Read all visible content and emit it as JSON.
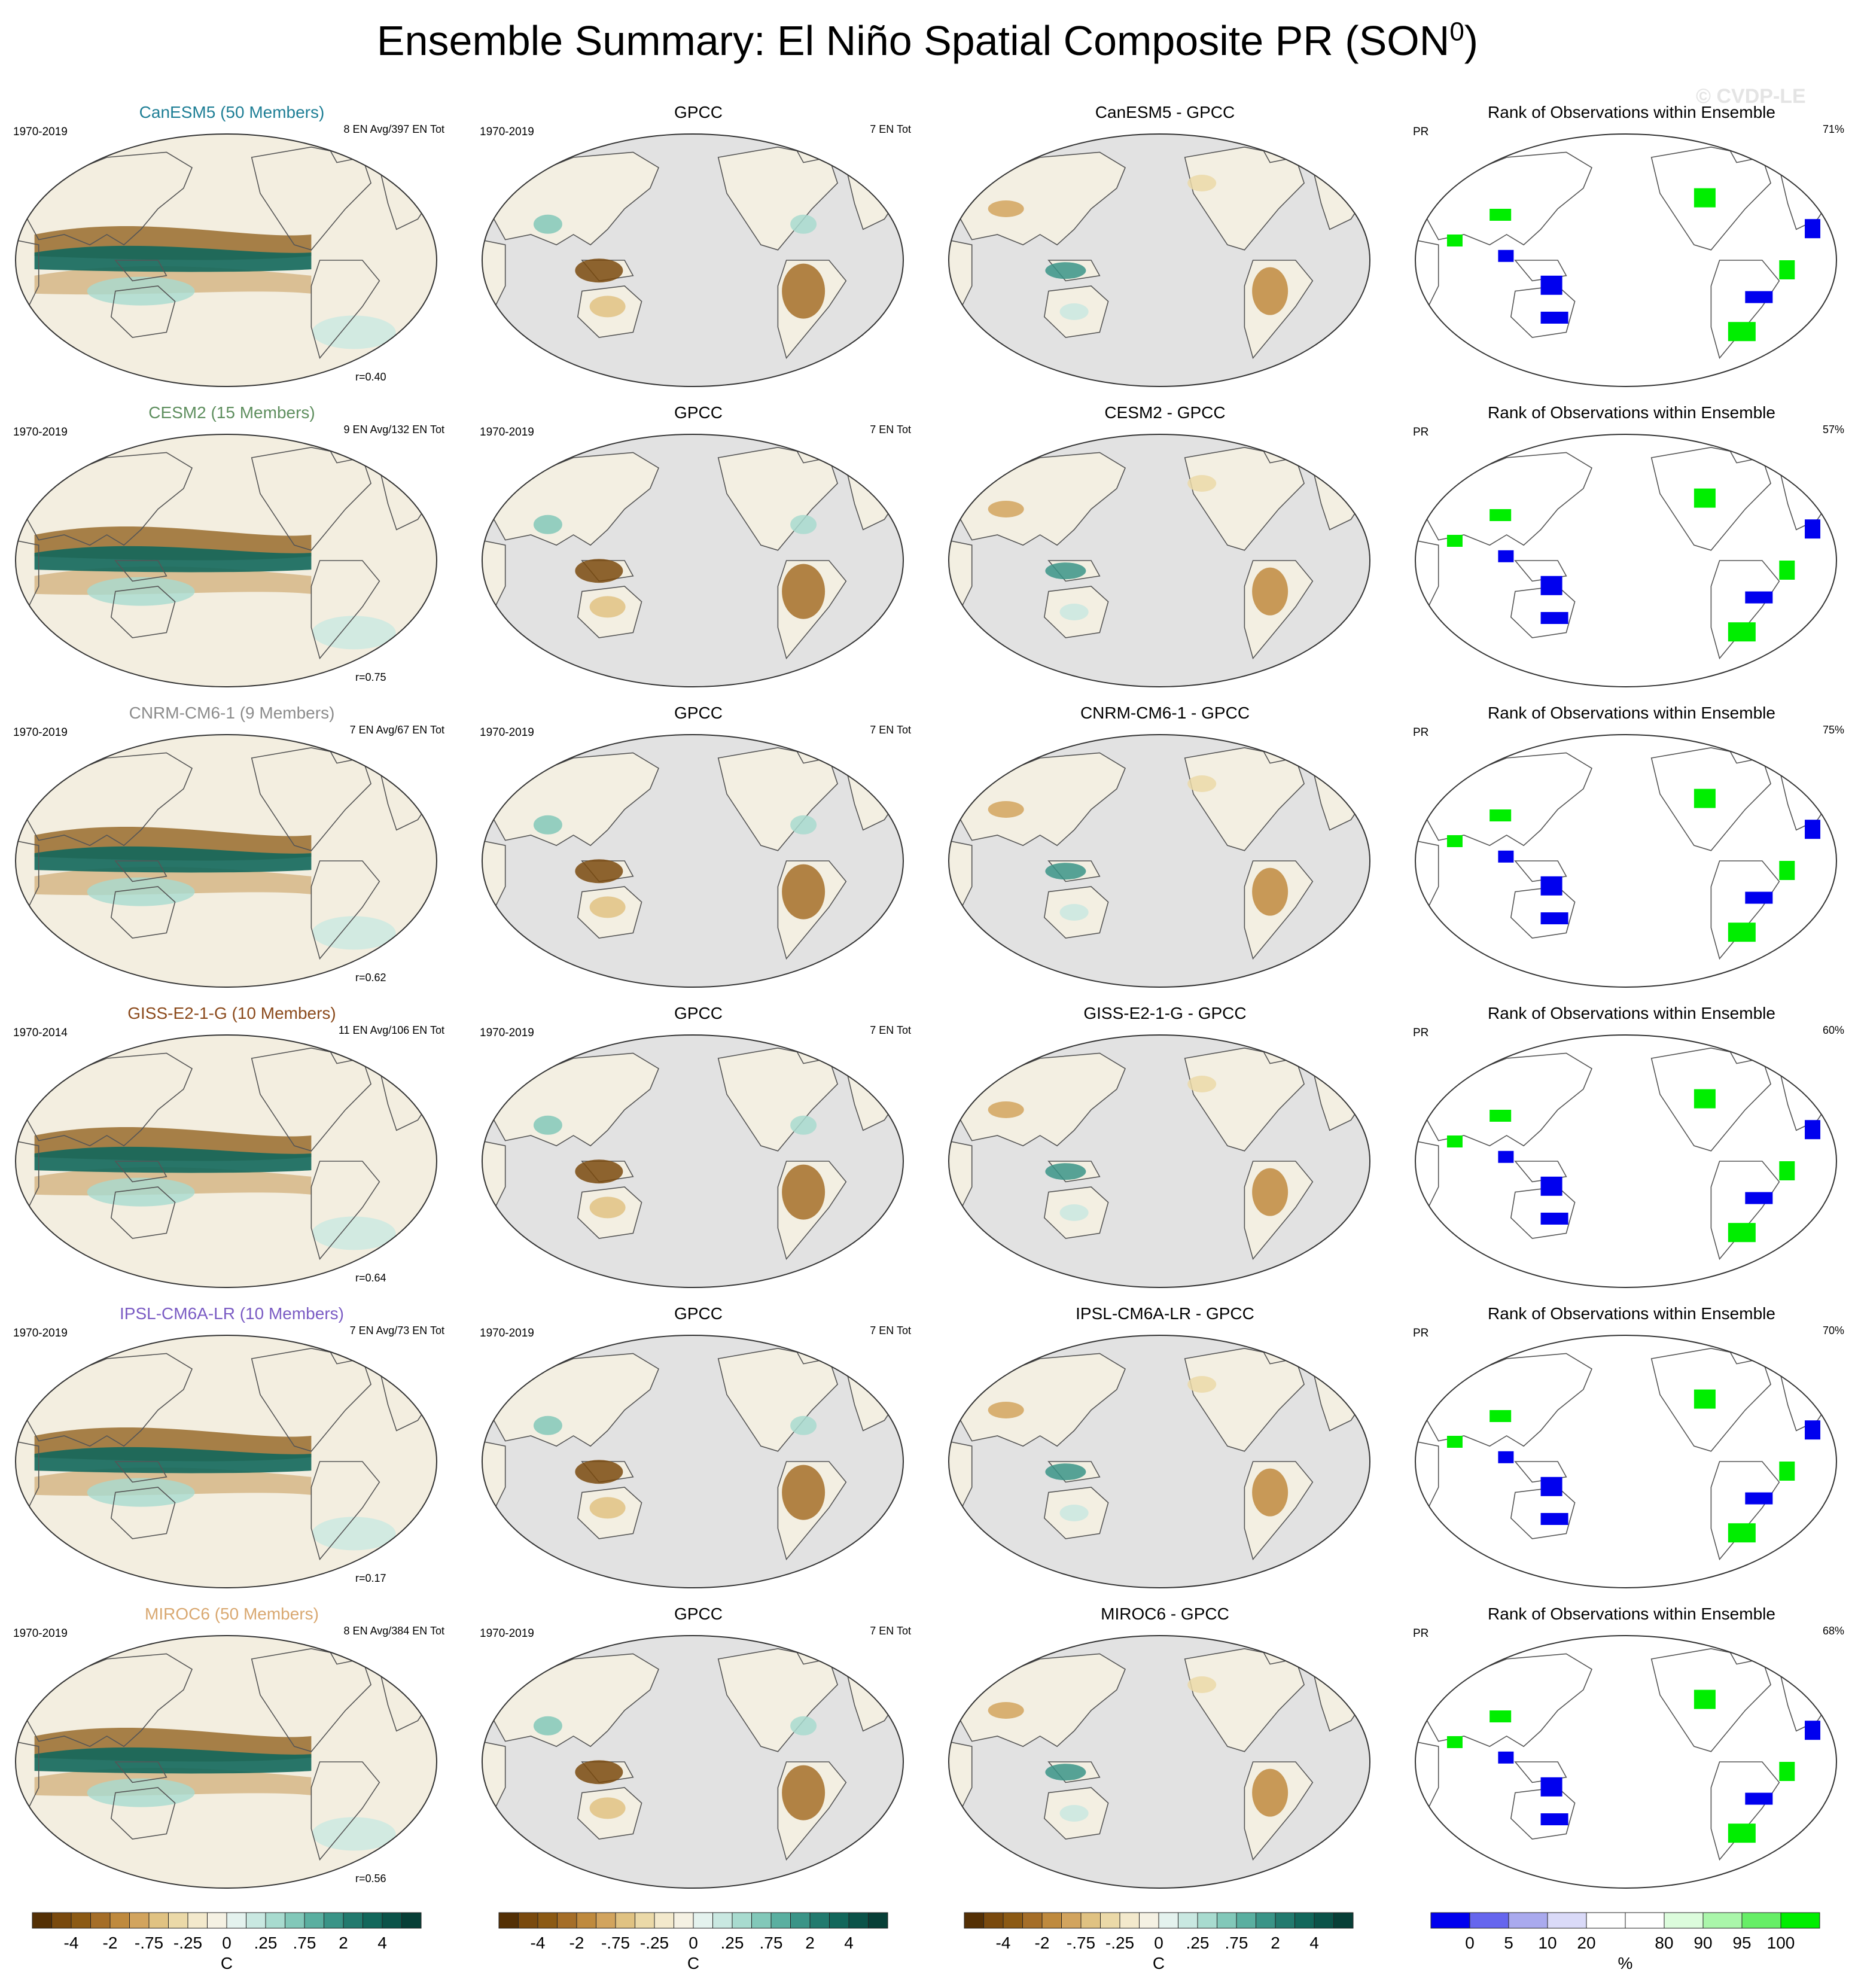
{
  "title": "Ensemble Summary: El Niño Spatial Composite PR (SON",
  "title_sup": "0",
  "title_close": ")",
  "watermark": "© CVDP-LE",
  "colors": {
    "ocean_gray": "#e2e2e2",
    "brown_dark": "#5a3a08",
    "teal_dark": "#0b4c45",
    "rank_blue": "#0000ee",
    "rank_green": "#00ee00"
  },
  "rows": [
    {
      "model": "CanESM5 (50 Members)",
      "model_color": "#1f7f96",
      "short": "CanESM5",
      "years": "1970-2019",
      "en_info": "8 EN Avg/397 EN Tot",
      "corr": "r=0.40",
      "obs_title": "GPCC",
      "obs_years": "1970-2019",
      "obs_en": "7 EN Tot",
      "diff_title": "CanESM5 - GPCC",
      "rank_title": "Rank of Observations within Ensemble",
      "rank_var": "PR",
      "rank_pct": "71%"
    },
    {
      "model": "CESM2 (15 Members)",
      "model_color": "#5f8f5f",
      "short": "CESM2",
      "years": "1970-2019",
      "en_info": "9 EN Avg/132 EN Tot",
      "corr": "r=0.75",
      "obs_title": "GPCC",
      "obs_years": "1970-2019",
      "obs_en": "7 EN Tot",
      "diff_title": "CESM2 - GPCC",
      "rank_title": "Rank of Observations within Ensemble",
      "rank_var": "PR",
      "rank_pct": "57%"
    },
    {
      "model": "CNRM-CM6-1 (9 Members)",
      "model_color": "#8c8c8c",
      "short": "CNRM-CM6-1",
      "years": "1970-2019",
      "en_info": "7 EN Avg/67 EN Tot",
      "corr": "r=0.62",
      "obs_title": "GPCC",
      "obs_years": "1970-2019",
      "obs_en": "7 EN Tot",
      "diff_title": "CNRM-CM6-1 - GPCC",
      "rank_title": "Rank of Observations within Ensemble",
      "rank_var": "PR",
      "rank_pct": "75%"
    },
    {
      "model": "GISS-E2-1-G (10 Members)",
      "model_color": "#8b4a1c",
      "short": "GISS-E2-1-G",
      "years": "1970-2014",
      "en_info": "11 EN Avg/106 EN Tot",
      "corr": "r=0.64",
      "obs_title": "GPCC",
      "obs_years": "1970-2019",
      "obs_en": "7 EN Tot",
      "diff_title": "GISS-E2-1-G - GPCC",
      "rank_title": "Rank of Observations within Ensemble",
      "rank_var": "PR",
      "rank_pct": "60%"
    },
    {
      "model": "IPSL-CM6A-LR (10 Members)",
      "model_color": "#7b5cc4",
      "short": "IPSL-CM6A-LR",
      "years": "1970-2019",
      "en_info": "7 EN Avg/73 EN Tot",
      "corr": "r=0.17",
      "obs_title": "GPCC",
      "obs_years": "1970-2019",
      "obs_en": "7 EN Tot",
      "diff_title": "IPSL-CM6A-LR - GPCC",
      "rank_title": "Rank of Observations within Ensemble",
      "rank_var": "PR",
      "rank_pct": "70%"
    },
    {
      "model": "MIROC6 (50 Members)",
      "model_color": "#d9a871",
      "short": "MIROC6",
      "years": "1970-2019",
      "en_info": "8 EN Avg/384 EN Tot",
      "corr": "r=0.56",
      "obs_title": "GPCC",
      "obs_years": "1970-2019",
      "obs_en": "7 EN Tot",
      "diff_title": "MIROC6 - GPCC",
      "rank_title": "Rank of Observations within Ensemble",
      "rank_var": "PR",
      "rank_pct": "68%"
    }
  ],
  "colorbars": {
    "anomaly": {
      "ticks": [
        "-4",
        "-2",
        "-.75",
        "-.25",
        "0",
        ".25",
        ".75",
        "2",
        "4"
      ],
      "unit": "C",
      "colors": [
        "#543005",
        "#7a4a0e",
        "#8c5a14",
        "#a56e28",
        "#bf8a3e",
        "#d2a45e",
        "#e0c282",
        "#ebd9a8",
        "#f3e9cc",
        "#f5f1e3",
        "#e4f2ee",
        "#c9e8e1",
        "#a8dbcf",
        "#82c8b9",
        "#5aafa0",
        "#3a9487",
        "#227a6e",
        "#12675b",
        "#0b5349",
        "#073f37"
      ]
    },
    "rank": {
      "ticks": [
        "0",
        "5",
        "10",
        "20",
        "80",
        "90",
        "95",
        "100"
      ],
      "unit": "%",
      "colors": [
        "#0000ee",
        "#6666ee",
        "#aaaaee",
        "#dadaf8",
        "#ffffff",
        "#ffffff",
        "#dcfcdc",
        "#aaf6aa",
        "#66ee66",
        "#00ee00"
      ]
    }
  },
  "chart_data": [
    {
      "type": "heatmap",
      "title": "Ensemble Summary: El Niño Spatial Composite PR (SON0)",
      "panels_per_row": [
        "model ensemble-mean composite",
        "GPCC observations",
        "model minus GPCC",
        "rank of observations within ensemble"
      ],
      "models": [
        "CanESM5",
        "CESM2",
        "CNRM-CM6-1",
        "GISS-E2-1-G",
        "IPSL-CM6A-LR",
        "MIROC6"
      ],
      "pattern_correlation": [
        0.4,
        0.75,
        0.62,
        0.64,
        0.17,
        0.56
      ],
      "rank_percent": [
        71,
        57,
        75,
        60,
        70,
        68
      ],
      "anomaly_levels": [
        -4,
        -2,
        -0.75,
        -0.25,
        0,
        0.25,
        0.75,
        2,
        4
      ],
      "rank_levels": [
        0,
        5,
        10,
        20,
        80,
        90,
        95,
        100
      ]
    }
  ]
}
